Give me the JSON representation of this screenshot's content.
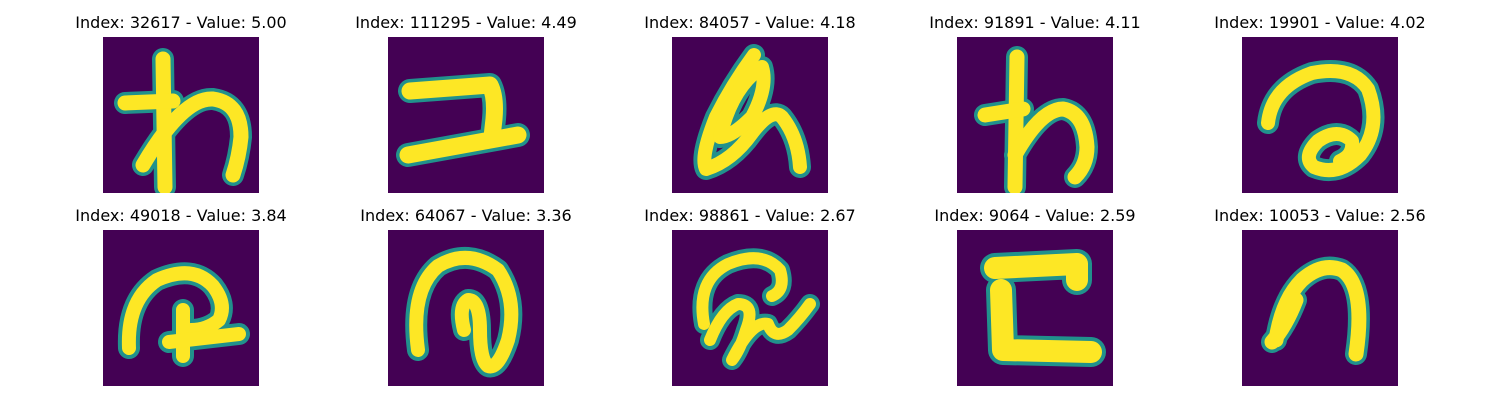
{
  "colormap": {
    "background": "#440154",
    "edge": "#21918c",
    "mid": "#5ec962",
    "stroke": "#fde725"
  },
  "panels": [
    {
      "title": "Index: 32617 - Value: 5.00",
      "glyph": "wa-icon"
    },
    {
      "title": "Index: 111295 - Value: 4.49",
      "glyph": "ko-icon"
    },
    {
      "title": "Index: 84057 - Value: 4.18",
      "glyph": "a-icon"
    },
    {
      "title": "Index: 91891 - Value: 4.11",
      "glyph": "wa-icon"
    },
    {
      "title": "Index: 19901 - Value: 4.02",
      "glyph": "ro-icon"
    },
    {
      "title": "Index: 49018 - Value: 3.84",
      "glyph": "ru-icon"
    },
    {
      "title": "Index: 64067 - Value: 3.36",
      "glyph": "ru-icon"
    },
    {
      "title": "Index: 98861 - Value: 2.67",
      "glyph": "a-icon"
    },
    {
      "title": "Index: 9064 - Value: 2.59",
      "glyph": "ko-icon"
    },
    {
      "title": "Index: 10053 - Value: 2.56",
      "glyph": "n-icon"
    }
  ]
}
